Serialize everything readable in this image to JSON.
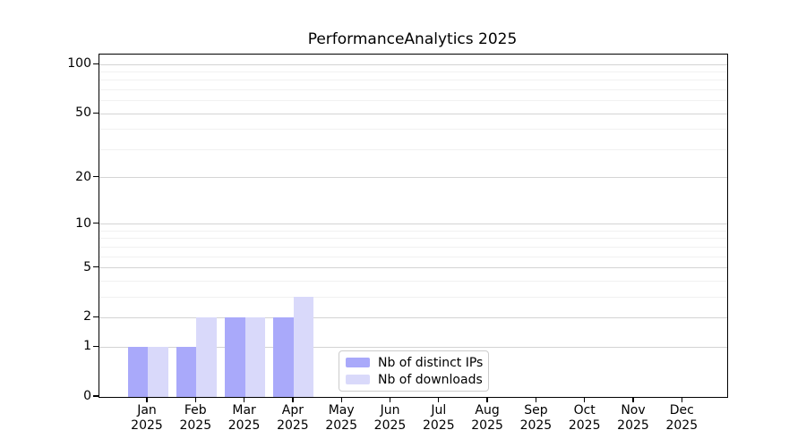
{
  "title": "PerformanceAnalytics 2025",
  "legend": {
    "items": [
      {
        "label": "Nb of distinct IPs",
        "color": "#a9a9fa"
      },
      {
        "label": "Nb of downloads",
        "color": "#d9d9fa"
      }
    ]
  },
  "chart_data": {
    "type": "bar",
    "title": "PerformanceAnalytics 2025",
    "categories": [
      "Jan",
      "Feb",
      "Mar",
      "Apr",
      "May",
      "Jun",
      "Jul",
      "Aug",
      "Sep",
      "Oct",
      "Nov",
      "Dec"
    ],
    "category_year": "2025",
    "series": [
      {
        "name": "Nb of distinct IPs",
        "color": "#a9a9fa",
        "values": [
          1,
          1,
          2,
          2,
          0,
          0,
          0,
          0,
          0,
          0,
          0,
          0
        ]
      },
      {
        "name": "Nb of downloads",
        "color": "#d9d9fa",
        "values": [
          1,
          2,
          2,
          3,
          0,
          0,
          0,
          0,
          0,
          0,
          0,
          0
        ]
      }
    ],
    "xlabel": "",
    "ylabel": "",
    "y_axis": {
      "scale": "log10(1+y)",
      "major_ticks": [
        0,
        1,
        2,
        5,
        10,
        20,
        50,
        100
      ],
      "minor_gridlines": [
        3,
        4,
        6,
        7,
        8,
        9,
        30,
        40,
        60,
        70,
        80,
        90
      ],
      "ylim": [
        0,
        115
      ]
    },
    "grid": "horizontal, major + minor",
    "legend_position": "lower center"
  },
  "colors": {
    "bar_distinct_ips": "#a9a9fa",
    "bar_downloads": "#d9d9fa",
    "grid_major": "#d4d4d4",
    "grid_minor": "#f1f1f1",
    "axis": "#000000",
    "legend_border": "#cccccc",
    "background": "#ffffff",
    "text": "#000000"
  }
}
